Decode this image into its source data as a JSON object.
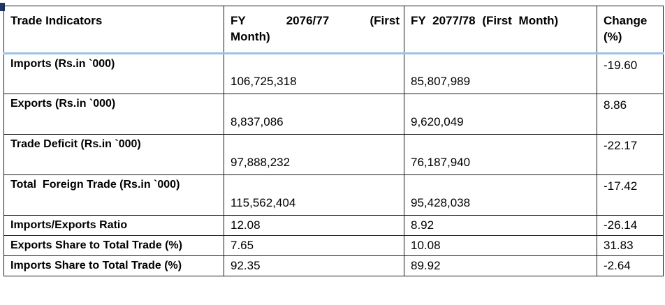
{
  "colors": {
    "header_separator": "#9CC2E5",
    "table_border": "#1A1A1A",
    "corner_artifact": "#1F3864",
    "background": "#FFFFFF"
  },
  "table": {
    "headers": {
      "indicators": "Trade Indicators",
      "fy1_line1": "FY 2076/77 (First",
      "fy1_line2": "Month)",
      "fy2": "FY 2077/78 (First Month)",
      "change": "Change (%)"
    },
    "rows": [
      {
        "indicator": "Imports (Rs.in `000)",
        "fy1": "106,725,318",
        "fy2": "85,807,989",
        "change": "-19.60"
      },
      {
        "indicator": "Exports (Rs.in `000)",
        "fy1": "8,837,086",
        "fy2": "9,620,049",
        "change": "8.86"
      },
      {
        "indicator": "Trade Deficit (Rs.in `000)",
        "fy1": "97,888,232",
        "fy2": "76,187,940",
        "change": "-22.17"
      },
      {
        "indicator": "Total  Foreign Trade (Rs.in `000)",
        "fy1": "115,562,404",
        "fy2": "95,428,038",
        "change": "-17.42"
      },
      {
        "indicator": "Imports/Exports Ratio",
        "fy1": "12.08",
        "fy2": "8.92",
        "change": "-26.14"
      },
      {
        "indicator": "Exports Share to Total Trade (%)",
        "fy1": "7.65",
        "fy2": "10.08",
        "change": "31.83"
      },
      {
        "indicator": "Imports Share to Total Trade (%)",
        "fy1": "92.35",
        "fy2": "89.92",
        "change": "-2.64"
      }
    ]
  }
}
